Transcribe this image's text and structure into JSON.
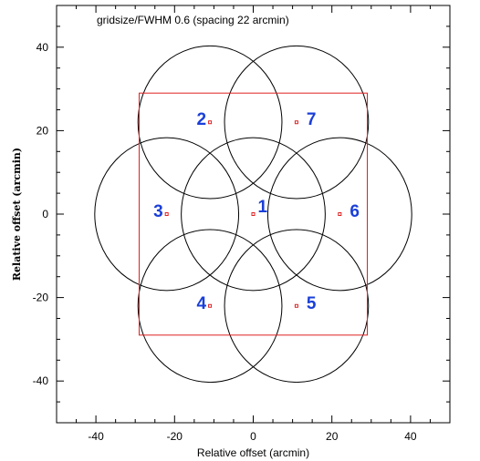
{
  "chart_data": {
    "type": "diagram",
    "title": "gridsize/FWHM 0.6 (spacing 22 arcmin)",
    "xlabel": "Relative offset (arcmin)",
    "ylabel": "Relative offset (arcmin)",
    "xlim": [
      -50,
      50
    ],
    "ylim": [
      -50,
      50
    ],
    "x_ticks": [
      -40,
      -20,
      0,
      20,
      40
    ],
    "y_ticks": [
      -40,
      -20,
      0,
      20,
      40
    ],
    "minor_tick_step": 5,
    "circle_radius": 18.3,
    "region_square": {
      "x": [
        -29,
        29
      ],
      "y": [
        -29,
        29
      ]
    },
    "pointings": [
      {
        "label": "1",
        "x": 0,
        "y": 0
      },
      {
        "label": "2",
        "x": -11,
        "y": 22
      },
      {
        "label": "3",
        "x": -22,
        "y": 0
      },
      {
        "label": "4",
        "x": -11,
        "y": -22
      },
      {
        "label": "5",
        "x": 11,
        "y": -22
      },
      {
        "label": "6",
        "x": 22,
        "y": 0
      },
      {
        "label": "7",
        "x": 11,
        "y": 22
      }
    ],
    "colors": {
      "circles": "#000000",
      "square": "#e02020",
      "markers": "#e02020",
      "labels": "#1a3fd8"
    }
  }
}
